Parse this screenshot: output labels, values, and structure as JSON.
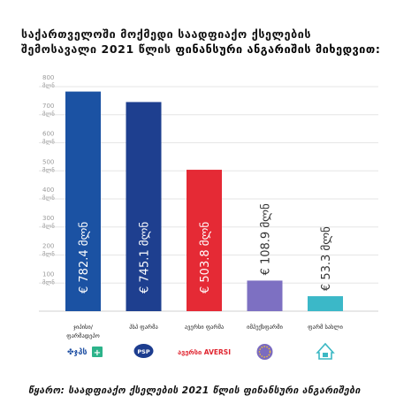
{
  "title": {
    "line1": "საქართველოში მოქმედი საადფიაქო ქსელების",
    "line2_prefix": "შემოსავალი 2021 წლის ",
    "line2_highlight": "ფინანსური ანგარიშის მიხედვით:"
  },
  "source": "წყარო: საადფიაქო ქსელების 2021 წლის ფინანსური ანგარიშები",
  "logos": [
    {
      "name": "gpc-logo",
      "text": "ჯპს",
      "color": "#1e4fa3"
    },
    {
      "name": "psp-logo",
      "text": "PSP",
      "color": "#1d3d8f"
    },
    {
      "name": "aversi-logo",
      "text": "AVERSI",
      "color": "#e02530"
    },
    {
      "name": "impex-logo",
      "text": "",
      "color": "#7b6bc0"
    },
    {
      "name": "pharma-house-logo",
      "text": "",
      "color": "#3bb8c4"
    }
  ],
  "chart_data": {
    "type": "bar",
    "categories": [
      "ჯიპისი/ფარმადეპო",
      "პსპ ფარმა",
      "ავერსი ფარმა",
      "იმპექსფარმი",
      "ფარმ სახლი"
    ],
    "values": [
      782.4,
      745.1,
      503.8,
      108.9,
      53.3
    ],
    "value_labels": [
      "€ 782.4 მლნ",
      "€ 745.1 მლნ",
      "€ 503.8 მლნ",
      "€ 108.9 მლნ",
      "€ 53.3 მლნ"
    ],
    "colors": [
      "#1b52a3",
      "#1e3f8f",
      "#e52a35",
      "#7d70c2",
      "#3bb8c8"
    ],
    "ylim": [
      0,
      800
    ],
    "yticks": [
      {
        "value": 100,
        "label": "100",
        "unit": "მლნ"
      },
      {
        "value": 200,
        "label": "200",
        "unit": "მლნ"
      },
      {
        "value": 300,
        "label": "300",
        "unit": "მლნ"
      },
      {
        "value": 400,
        "label": "400",
        "unit": "მლნ"
      },
      {
        "value": 500,
        "label": "500",
        "unit": "მლნ"
      },
      {
        "value": 600,
        "label": "600",
        "unit": "მლნ"
      },
      {
        "value": 700,
        "label": "700",
        "unit": "მლნ"
      },
      {
        "value": 800,
        "label": "800",
        "unit": "მლნ"
      }
    ],
    "grid": true
  }
}
